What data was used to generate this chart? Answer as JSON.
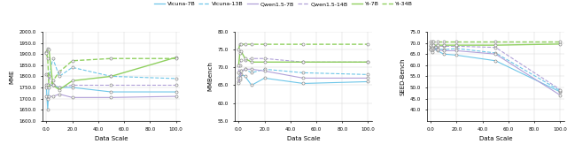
{
  "x": [
    0.0,
    1.0,
    2.0,
    5.0,
    10.0,
    20.0,
    50.0,
    100.0
  ],
  "mme": {
    "vicuna_7b": [
      1750,
      1650,
      1760,
      1760,
      1750,
      1750,
      1730,
      1730
    ],
    "vicuna_13b": [
      1810,
      1810,
      1800,
      1880,
      1800,
      1840,
      1800,
      1790
    ],
    "qwen_7b": [
      1710,
      1700,
      1710,
      1710,
      1720,
      1705,
      1705,
      1710
    ],
    "qwen_14b": [
      1760,
      1760,
      1800,
      1760,
      1750,
      1760,
      1760,
      1760
    ],
    "yi_7b": [
      1910,
      1925,
      1920,
      1760,
      1740,
      1780,
      1800,
      1885
    ],
    "yi_34b": [
      1905,
      1880,
      1750,
      1780,
      1820,
      1870,
      1880,
      1880
    ]
  },
  "mmbench": {
    "vicuna_7b": [
      66.0,
      66.5,
      68.0,
      67.5,
      65.0,
      67.0,
      65.5,
      66.0
    ],
    "vicuna_13b": [
      67.0,
      68.0,
      69.0,
      69.5,
      68.5,
      69.5,
      68.5,
      68.0
    ],
    "qwen_7b": [
      65.5,
      67.0,
      69.0,
      69.5,
      69.5,
      69.0,
      67.0,
      67.0
    ],
    "qwen_14b": [
      68.5,
      70.5,
      72.0,
      72.0,
      72.5,
      72.5,
      71.5,
      71.5
    ],
    "yi_7b": [
      70.5,
      74.0,
      74.5,
      72.5,
      71.5,
      71.5,
      71.5,
      71.5
    ],
    "yi_34b": [
      75.0,
      76.5,
      76.5,
      76.5,
      76.5,
      76.5,
      76.5,
      76.5
    ]
  },
  "seedbench": {
    "vicuna_7b": [
      67.0,
      66.0,
      67.5,
      66.5,
      65.0,
      64.5,
      62.0,
      48.0
    ],
    "vicuna_13b": [
      67.5,
      67.5,
      68.0,
      67.5,
      67.0,
      67.5,
      65.5,
      48.5
    ],
    "qwen_7b": [
      67.0,
      67.0,
      67.5,
      67.0,
      66.5,
      66.5,
      65.0,
      46.5
    ],
    "qwen_14b": [
      68.5,
      68.0,
      68.5,
      68.5,
      68.5,
      68.5,
      68.0,
      49.0
    ],
    "yi_7b": [
      69.0,
      68.5,
      69.0,
      69.0,
      69.0,
      69.0,
      69.0,
      69.5
    ],
    "yi_34b": [
      70.5,
      70.5,
      70.5,
      70.5,
      70.5,
      70.5,
      70.5,
      70.5
    ]
  },
  "colors": {
    "vicuna": "#6EC6E8",
    "qwen": "#B0A0D8",
    "yi": "#90D060"
  },
  "ylim_mme": [
    1600,
    2000
  ],
  "ylim_mmbench": [
    55,
    80
  ],
  "ylim_seedbench": [
    35,
    75
  ],
  "yticks_mme": [
    1600,
    1650,
    1700,
    1750,
    1800,
    1850,
    1900,
    1950,
    2000
  ],
  "yticks_mmbench": [
    55,
    60,
    65,
    70,
    75,
    80
  ],
  "yticks_seedbench": [
    40,
    45,
    50,
    55,
    60,
    65,
    70,
    75
  ],
  "xticks": [
    0,
    20,
    40,
    60,
    80,
    100
  ],
  "xticklabels": [
    "0.0",
    "20.0",
    "40.0",
    "60.0",
    "80.0",
    "100.0"
  ],
  "xlabel": "Data Scale",
  "ylabel_mme": "MME",
  "ylabel_mmbench": "MMBench",
  "ylabel_seedbench": "SEED-Bench",
  "legend_labels": [
    "Vicuna-7B",
    "Vicuna-13B",
    "Qwen1.5-7B",
    "Qwen1.5-14B",
    "Yi-7B",
    "Yi-34B"
  ]
}
